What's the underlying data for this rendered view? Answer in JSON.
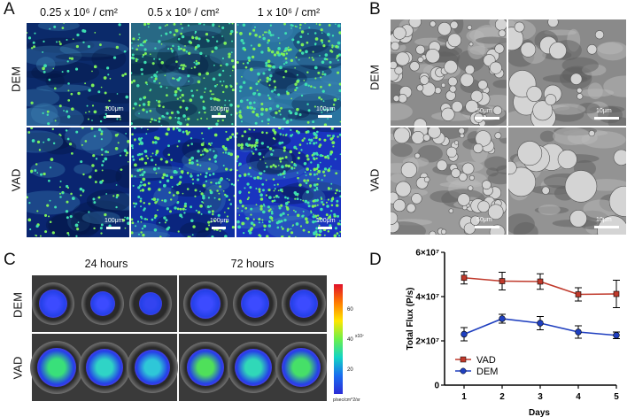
{
  "panels": {
    "a": {
      "letter": "A",
      "columns": [
        "0.25 x 10⁶ / cm²",
        "0.5 x 10⁶ / cm²",
        "1 x 10⁶ / cm²"
      ],
      "rows": [
        "DEM",
        "VAD"
      ],
      "scale": "100μm"
    },
    "b": {
      "letter": "B",
      "rows": [
        "DEM",
        "VAD"
      ],
      "scales": [
        "50μm",
        "10μm",
        "50μm",
        "10μm"
      ]
    },
    "c": {
      "letter": "C",
      "columns": [
        "24 hours",
        "72 hours"
      ],
      "rows": [
        "DEM",
        "VAD"
      ],
      "colorbar_ticks": [
        "60",
        "40",
        "20"
      ],
      "colorbar_exponent": "x10⁷",
      "colorbar_unit": "p/sec/cm^2/sr"
    },
    "d": {
      "letter": "D"
    }
  },
  "chart_data": {
    "type": "line",
    "xlabel": "Days",
    "ylabel": "Total Flux (P/s)",
    "x": [
      1,
      2,
      3,
      4,
      5
    ],
    "xticks": [
      "1",
      "2",
      "3",
      "4",
      "5"
    ],
    "ylim": [
      0,
      60000000
    ],
    "yticks": [
      {
        "value": 0,
        "label": "0"
      },
      {
        "value": 20000000,
        "label": "2×10⁷"
      },
      {
        "value": 40000000,
        "label": "4×10⁷"
      },
      {
        "value": 60000000,
        "label": "6×10⁷"
      }
    ],
    "series": [
      {
        "name": "VAD",
        "color": "#c0392b",
        "marker": "square",
        "values": [
          48500000,
          47000000,
          46800000,
          41000000,
          41200000
        ],
        "errors": [
          2800000,
          4000000,
          3500000,
          3000000,
          6200000
        ]
      },
      {
        "name": "DEM",
        "color": "#1f3fbf",
        "marker": "circle",
        "values": [
          23000000,
          30000000,
          28000000,
          24000000,
          22500000
        ],
        "errors": [
          3000000,
          2000000,
          3000000,
          2800000,
          1500000
        ]
      }
    ],
    "legend": "bottom-left"
  }
}
